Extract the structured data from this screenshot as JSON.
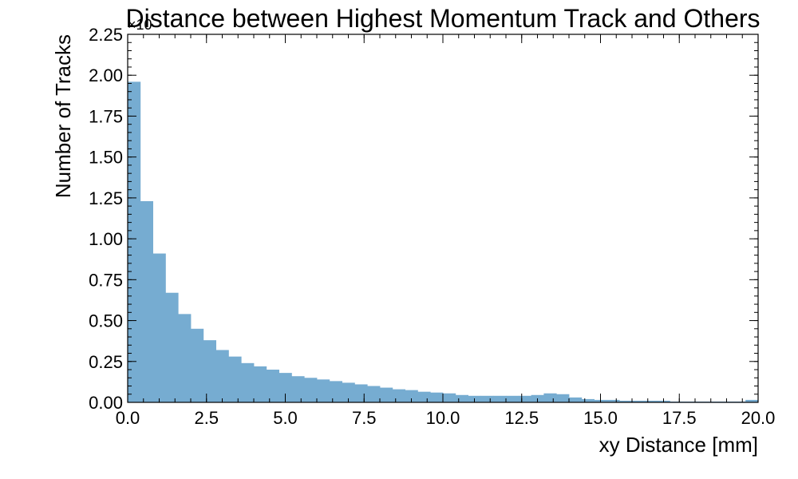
{
  "chart_data": {
    "type": "bar",
    "title": "Distance between Highest Momentum Track and Others",
    "xlabel": "xy Distance [mm]",
    "ylabel": "Number of Tracks",
    "y_offset_text": "×10",
    "xlim": [
      0,
      20
    ],
    "ylim": [
      0,
      2.25
    ],
    "bin_width": 0.4,
    "bin_edges_start": 0,
    "x_ticks": [
      "0.0",
      "2.5",
      "5.0",
      "7.5",
      "10.0",
      "12.5",
      "15.0",
      "17.5",
      "20.0"
    ],
    "y_ticks": [
      "0.00",
      "0.25",
      "0.50",
      "0.75",
      "1.00",
      "1.25",
      "1.50",
      "1.75",
      "2.00",
      "2.25"
    ],
    "values": [
      1.96,
      1.23,
      0.91,
      0.67,
      0.54,
      0.45,
      0.38,
      0.32,
      0.28,
      0.24,
      0.22,
      0.2,
      0.18,
      0.16,
      0.15,
      0.14,
      0.13,
      0.12,
      0.11,
      0.1,
      0.09,
      0.08,
      0.075,
      0.065,
      0.06,
      0.055,
      0.045,
      0.04,
      0.04,
      0.04,
      0.04,
      0.04,
      0.045,
      0.055,
      0.05,
      0.03,
      0.02,
      0.015,
      0.015,
      0.01,
      0.01,
      0.01,
      0.01,
      0.005,
      0.005,
      0.005,
      0.005,
      0.005,
      0.005,
      0.015
    ],
    "bar_color": "#76acd1",
    "grid": false
  }
}
